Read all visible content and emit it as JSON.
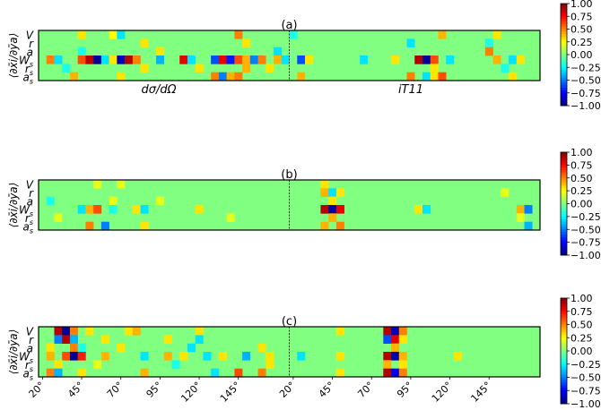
{
  "colors": {
    "background": "#ffffff",
    "frame": "#000000",
    "field": "#80ff80"
  },
  "colorbar": {
    "ticks": [
      "1.00",
      "0.75",
      "0.50",
      "0.25",
      "0.00",
      "−0.25",
      "−0.50",
      "−0.75",
      "−1.00"
    ],
    "range": [
      -1,
      1
    ],
    "colormap": "jet"
  },
  "chart_data": [
    {
      "type": "heatmap",
      "title": "(a)",
      "ylabel": "⟨∂x̄i/∂ȳa⟩",
      "row_labels": [
        "V",
        "r",
        "a",
        "W",
        "r",
        "a"
      ],
      "row_subs": [
        "",
        "",
        "",
        "s",
        "s",
        "s"
      ],
      "section_labels": [
        "dσ/dΩ",
        "iT11"
      ],
      "x_tick_labels": [],
      "cells": [
        {
          "r": 0,
          "c": 5,
          "v": 0.3
        },
        {
          "r": 0,
          "c": 9,
          "v": 0.25
        },
        {
          "r": 0,
          "c": 10,
          "v": -0.3
        },
        {
          "r": 0,
          "c": 25,
          "v": 0.5
        },
        {
          "r": 0,
          "c": 32,
          "v": -0.2
        },
        {
          "r": 0,
          "c": 51,
          "v": 0.4
        },
        {
          "r": 0,
          "c": 58,
          "v": 0.3
        },
        {
          "r": 1,
          "c": 13,
          "v": 0.3
        },
        {
          "r": 1,
          "c": 26,
          "v": 0.3
        },
        {
          "r": 1,
          "c": 47,
          "v": -0.3
        },
        {
          "r": 1,
          "c": 57,
          "v": -0.2
        },
        {
          "r": 2,
          "c": 5,
          "v": -0.2
        },
        {
          "r": 2,
          "c": 15,
          "v": 0.3
        },
        {
          "r": 2,
          "c": 30,
          "v": -0.3
        },
        {
          "r": 2,
          "c": 57,
          "v": 0.5
        },
        {
          "r": 3,
          "c": 1,
          "v": 0.5
        },
        {
          "r": 3,
          "c": 2,
          "v": -0.3
        },
        {
          "r": 3,
          "c": 5,
          "v": 0.6
        },
        {
          "r": 3,
          "c": 6,
          "v": 0.9
        },
        {
          "r": 3,
          "c": 7,
          "v": -0.95
        },
        {
          "r": 3,
          "c": 8,
          "v": -0.3
        },
        {
          "r": 3,
          "c": 9,
          "v": 0.3
        },
        {
          "r": 3,
          "c": 10,
          "v": -0.9
        },
        {
          "r": 3,
          "c": 11,
          "v": 0.9
        },
        {
          "r": 3,
          "c": 12,
          "v": 0.5
        },
        {
          "r": 3,
          "c": 15,
          "v": -0.4
        },
        {
          "r": 3,
          "c": 18,
          "v": 0.8
        },
        {
          "r": 3,
          "c": 19,
          "v": -0.3
        },
        {
          "r": 3,
          "c": 22,
          "v": -0.6
        },
        {
          "r": 3,
          "c": 23,
          "v": 0.8
        },
        {
          "r": 3,
          "c": 24,
          "v": -0.7
        },
        {
          "r": 3,
          "c": 25,
          "v": 0.6
        },
        {
          "r": 3,
          "c": 26,
          "v": 0.4
        },
        {
          "r": 3,
          "c": 27,
          "v": -0.5
        },
        {
          "r": 3,
          "c": 28,
          "v": 0.5
        },
        {
          "r": 3,
          "c": 30,
          "v": 0.4
        },
        {
          "r": 3,
          "c": 31,
          "v": -0.3
        },
        {
          "r": 3,
          "c": 33,
          "v": -0.6
        },
        {
          "r": 3,
          "c": 34,
          "v": 0.3
        },
        {
          "r": 3,
          "c": 41,
          "v": -0.3
        },
        {
          "r": 3,
          "c": 45,
          "v": 0.3
        },
        {
          "r": 3,
          "c": 48,
          "v": 0.9
        },
        {
          "r": 3,
          "c": 49,
          "v": -0.95
        },
        {
          "r": 3,
          "c": 50,
          "v": 0.6
        },
        {
          "r": 3,
          "c": 52,
          "v": -0.3
        },
        {
          "r": 3,
          "c": 58,
          "v": 0.4
        },
        {
          "r": 3,
          "c": 60,
          "v": -0.3
        },
        {
          "r": 3,
          "c": 61,
          "v": 0.3
        },
        {
          "r": 4,
          "c": 3,
          "v": -0.2
        },
        {
          "r": 4,
          "c": 13,
          "v": 0.3
        },
        {
          "r": 4,
          "c": 20,
          "v": 0.3
        },
        {
          "r": 4,
          "c": 26,
          "v": 0.4
        },
        {
          "r": 4,
          "c": 29,
          "v": 0.3
        },
        {
          "r": 4,
          "c": 50,
          "v": 0.3
        },
        {
          "r": 4,
          "c": 59,
          "v": -0.2
        },
        {
          "r": 5,
          "c": 4,
          "v": 0.4
        },
        {
          "r": 5,
          "c": 10,
          "v": 0.3
        },
        {
          "r": 5,
          "c": 22,
          "v": 0.5
        },
        {
          "r": 5,
          "c": 23,
          "v": -0.5
        },
        {
          "r": 5,
          "c": 24,
          "v": 0.4
        },
        {
          "r": 5,
          "c": 25,
          "v": 0.5
        },
        {
          "r": 5,
          "c": 33,
          "v": 0.4
        },
        {
          "r": 5,
          "c": 47,
          "v": 0.5
        },
        {
          "r": 5,
          "c": 49,
          "v": -0.3
        },
        {
          "r": 5,
          "c": 50,
          "v": 0.3
        },
        {
          "r": 5,
          "c": 51,
          "v": 0.6
        },
        {
          "r": 5,
          "c": 60,
          "v": 0.3
        }
      ]
    },
    {
      "type": "heatmap",
      "title": "(b)",
      "ylabel": "⟨∂x̄i/∂ȳa⟩",
      "row_labels": [
        "V",
        "r",
        "a",
        "W",
        "r",
        "a"
      ],
      "row_subs": [
        "",
        "",
        "",
        "s",
        "s",
        "s"
      ],
      "section_labels": [],
      "x_tick_labels": [],
      "cells": [
        {
          "r": 0,
          "c": 7,
          "v": 0.2
        },
        {
          "r": 0,
          "c": 10,
          "v": 0.2
        },
        {
          "r": 0,
          "c": 36,
          "v": 0.3
        },
        {
          "r": 1,
          "c": 36,
          "v": 0.4
        },
        {
          "r": 1,
          "c": 37,
          "v": -0.3
        },
        {
          "r": 1,
          "c": 38,
          "v": 0.3
        },
        {
          "r": 1,
          "c": 59,
          "v": 0.2
        },
        {
          "r": 2,
          "c": 1,
          "v": -0.2
        },
        {
          "r": 2,
          "c": 9,
          "v": 0.2
        },
        {
          "r": 2,
          "c": 15,
          "v": 0.2
        },
        {
          "r": 2,
          "c": 37,
          "v": 0.3
        },
        {
          "r": 3,
          "c": 5,
          "v": -0.3
        },
        {
          "r": 3,
          "c": 6,
          "v": 0.4
        },
        {
          "r": 3,
          "c": 7,
          "v": 0.6
        },
        {
          "r": 3,
          "c": 9,
          "v": -0.2
        },
        {
          "r": 3,
          "c": 12,
          "v": 0.3
        },
        {
          "r": 3,
          "c": 13,
          "v": -0.3
        },
        {
          "r": 3,
          "c": 20,
          "v": 0.3
        },
        {
          "r": 3,
          "c": 36,
          "v": 0.9
        },
        {
          "r": 3,
          "c": 37,
          "v": -0.95
        },
        {
          "r": 3,
          "c": 38,
          "v": 0.8
        },
        {
          "r": 3,
          "c": 48,
          "v": 0.3
        },
        {
          "r": 3,
          "c": 49,
          "v": -0.3
        },
        {
          "r": 3,
          "c": 61,
          "v": 0.4
        },
        {
          "r": 3,
          "c": 62,
          "v": -0.5
        },
        {
          "r": 4,
          "c": 2,
          "v": 0.2
        },
        {
          "r": 4,
          "c": 24,
          "v": 0.2
        },
        {
          "r": 4,
          "c": 37,
          "v": 0.4
        },
        {
          "r": 4,
          "c": 61,
          "v": 0.2
        },
        {
          "r": 5,
          "c": 6,
          "v": 0.5
        },
        {
          "r": 5,
          "c": 8,
          "v": -0.5
        },
        {
          "r": 5,
          "c": 13,
          "v": 0.3
        },
        {
          "r": 5,
          "c": 36,
          "v": 0.4
        },
        {
          "r": 5,
          "c": 38,
          "v": 0.5
        },
        {
          "r": 5,
          "c": 62,
          "v": -0.4
        }
      ]
    },
    {
      "type": "heatmap",
      "title": "(c)",
      "ylabel": "⟨∂x̄i/∂ȳa⟩",
      "row_labels": [
        "V",
        "r",
        "a",
        "W",
        "r",
        "a"
      ],
      "row_subs": [
        "",
        "",
        "",
        "s",
        "s",
        "s"
      ],
      "section_labels": [],
      "x_tick_labels": [
        "20°",
        "45°",
        "70°",
        "95°",
        "120°",
        "145°",
        "20°",
        "45°",
        "70°",
        "95°",
        "120°",
        "145°"
      ],
      "cells": [
        {
          "r": 0,
          "c": 2,
          "v": 0.9
        },
        {
          "r": 0,
          "c": 3,
          "v": -0.95
        },
        {
          "r": 0,
          "c": 4,
          "v": 0.5
        },
        {
          "r": 0,
          "c": 6,
          "v": 0.3
        },
        {
          "r": 0,
          "c": 11,
          "v": 0.3
        },
        {
          "r": 0,
          "c": 12,
          "v": 0.4
        },
        {
          "r": 0,
          "c": 20,
          "v": 0.3
        },
        {
          "r": 0,
          "c": 38,
          "v": 0.3
        },
        {
          "r": 0,
          "c": 44,
          "v": 0.9
        },
        {
          "r": 0,
          "c": 45,
          "v": -0.9
        },
        {
          "r": 0,
          "c": 46,
          "v": 0.5
        },
        {
          "r": 1,
          "c": 2,
          "v": -0.5
        },
        {
          "r": 1,
          "c": 3,
          "v": 0.9
        },
        {
          "r": 1,
          "c": 4,
          "v": -0.4
        },
        {
          "r": 1,
          "c": 8,
          "v": 0.3
        },
        {
          "r": 1,
          "c": 16,
          "v": 0.3
        },
        {
          "r": 1,
          "c": 20,
          "v": -0.3
        },
        {
          "r": 1,
          "c": 44,
          "v": -0.6
        },
        {
          "r": 1,
          "c": 45,
          "v": 0.8
        },
        {
          "r": 1,
          "c": 46,
          "v": 0.3
        },
        {
          "r": 2,
          "c": 1,
          "v": 0.3
        },
        {
          "r": 2,
          "c": 4,
          "v": 0.5
        },
        {
          "r": 2,
          "c": 5,
          "v": -0.2
        },
        {
          "r": 2,
          "c": 10,
          "v": 0.3
        },
        {
          "r": 2,
          "c": 19,
          "v": -0.3
        },
        {
          "r": 2,
          "c": 28,
          "v": 0.3
        },
        {
          "r": 2,
          "c": 45,
          "v": 0.4
        },
        {
          "r": 3,
          "c": 1,
          "v": 0.4
        },
        {
          "r": 3,
          "c": 3,
          "v": 0.6
        },
        {
          "r": 3,
          "c": 4,
          "v": -0.95
        },
        {
          "r": 3,
          "c": 5,
          "v": 0.7
        },
        {
          "r": 3,
          "c": 8,
          "v": 0.4
        },
        {
          "r": 3,
          "c": 13,
          "v": -0.3
        },
        {
          "r": 3,
          "c": 16,
          "v": 0.4
        },
        {
          "r": 3,
          "c": 18,
          "v": 0.3
        },
        {
          "r": 3,
          "c": 21,
          "v": -0.3
        },
        {
          "r": 3,
          "c": 23,
          "v": 0.3
        },
        {
          "r": 3,
          "c": 26,
          "v": -0.4
        },
        {
          "r": 3,
          "c": 29,
          "v": 0.3
        },
        {
          "r": 3,
          "c": 33,
          "v": -0.3
        },
        {
          "r": 3,
          "c": 38,
          "v": 0.3
        },
        {
          "r": 3,
          "c": 44,
          "v": 0.9
        },
        {
          "r": 3,
          "c": 45,
          "v": -0.9
        },
        {
          "r": 3,
          "c": 46,
          "v": 0.4
        },
        {
          "r": 3,
          "c": 53,
          "v": 0.3
        },
        {
          "r": 4,
          "c": 2,
          "v": 0.3
        },
        {
          "r": 4,
          "c": 7,
          "v": 0.2
        },
        {
          "r": 4,
          "c": 17,
          "v": -0.2
        },
        {
          "r": 4,
          "c": 29,
          "v": 0.3
        },
        {
          "r": 4,
          "c": 44,
          "v": 0.4
        },
        {
          "r": 4,
          "c": 46,
          "v": 0.3
        },
        {
          "r": 5,
          "c": 1,
          "v": 0.5
        },
        {
          "r": 5,
          "c": 2,
          "v": -0.4
        },
        {
          "r": 5,
          "c": 5,
          "v": 0.3
        },
        {
          "r": 5,
          "c": 13,
          "v": 0.4
        },
        {
          "r": 5,
          "c": 22,
          "v": -0.3
        },
        {
          "r": 5,
          "c": 25,
          "v": 0.6
        },
        {
          "r": 5,
          "c": 28,
          "v": 0.5
        },
        {
          "r": 5,
          "c": 38,
          "v": 0.3
        },
        {
          "r": 5,
          "c": 44,
          "v": 0.9
        },
        {
          "r": 5,
          "c": 45,
          "v": -0.8
        },
        {
          "r": 5,
          "c": 46,
          "v": 0.5
        }
      ]
    }
  ]
}
